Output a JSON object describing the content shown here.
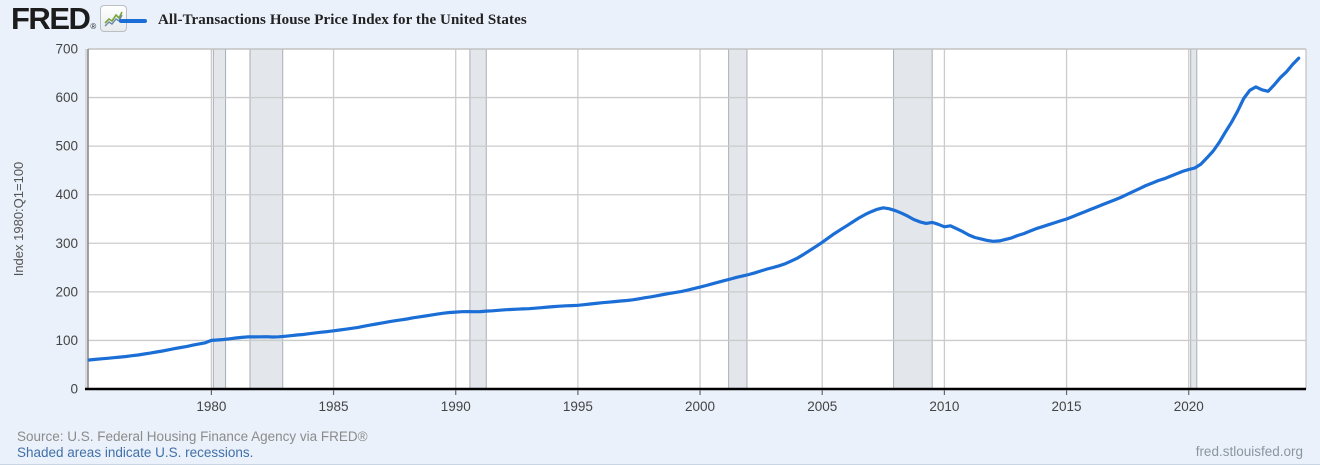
{
  "header": {
    "logo_text": "FRED",
    "logo_registered": "®",
    "legend": {
      "series_label": "All-Transactions House Price Index for the United States",
      "series_color": "#1b6ed6"
    }
  },
  "footer": {
    "source": "Source: U.S. Federal Housing Finance Agency via FRED®",
    "recession_note": "Shaded areas indicate U.S. recessions.",
    "site_link": "fred.stlouisfed.org"
  },
  "colors": {
    "page_background": "#eaf1fa",
    "plot_background": "#ffffff",
    "gridline": "#cbcbcb",
    "plot_border": "#c2c2c2",
    "y_axis_line": "#8a8a8a",
    "x_axis_line": "#000000",
    "recession_fill": "#e3e7eb",
    "recession_border": "#a8aeb4",
    "tick_label": "#444444",
    "axis_title": "#555555",
    "line": "#1b6ed6",
    "logo_sparkline_green": "#79a43c",
    "logo_sparkline_blue": "#6b87a4"
  },
  "chart_data": {
    "type": "line",
    "title": "All-Transactions House Price Index for the United States",
    "xlabel": "",
    "ylabel": "Index 1980:Q1=100",
    "legend_position": "top-left",
    "grid": true,
    "xlim": [
      1974.95,
      2024.8
    ],
    "ylim": [
      0,
      700
    ],
    "x_ticks": [
      1980,
      1985,
      1990,
      1995,
      2000,
      2005,
      2010,
      2015,
      2020
    ],
    "y_ticks": [
      0,
      100,
      200,
      300,
      400,
      500,
      600,
      700
    ],
    "recessions": [
      [
        1980.08,
        1980.58
      ],
      [
        1981.58,
        1982.92
      ],
      [
        1990.58,
        1991.25
      ],
      [
        2001.17,
        2001.92
      ],
      [
        2007.92,
        2009.5
      ],
      [
        2020.08,
        2020.33
      ]
    ],
    "series": [
      {
        "name": "All-Transactions House Price Index for the United States",
        "frequency": "quarterly",
        "x_start": 1975.0,
        "x_step": 0.25,
        "values": [
          59.8,
          61.0,
          62.1,
          63.2,
          64.4,
          65.7,
          67.0,
          68.5,
          70.1,
          72.0,
          74.0,
          76.1,
          78.3,
          80.7,
          83.1,
          85.5,
          87.8,
          90.3,
          92.8,
          95.1,
          100.0,
          100.8,
          102.0,
          103.4,
          104.9,
          106.3,
          107.3,
          107.2,
          107.4,
          107.6,
          107.0,
          107.5,
          108.4,
          109.7,
          111.1,
          112.3,
          113.9,
          115.5,
          116.9,
          118.2,
          119.8,
          121.4,
          123.1,
          124.9,
          126.9,
          129.2,
          131.6,
          133.9,
          136.1,
          138.4,
          140.5,
          142.2,
          144.2,
          146.5,
          148.5,
          150.2,
          152.1,
          154.3,
          156.1,
          157.4,
          158.4,
          159.2,
          159.4,
          159.2,
          159.4,
          160.3,
          161.1,
          162.0,
          163.1,
          163.7,
          164.3,
          165.0,
          165.4,
          166.3,
          167.4,
          168.7,
          169.7,
          170.5,
          171.3,
          171.8,
          172.4,
          173.6,
          175.0,
          176.3,
          177.7,
          178.8,
          179.9,
          181.1,
          182.2,
          183.7,
          185.7,
          187.9,
          189.9,
          192.1,
          194.5,
          196.8,
          198.8,
          201.0,
          203.7,
          206.7,
          209.7,
          213.1,
          216.6,
          219.8,
          223.1,
          226.4,
          229.9,
          232.8,
          235.7,
          239.2,
          243.2,
          247.0,
          250.3,
          253.9,
          258.2,
          263.9,
          270.0,
          277.5,
          285.5,
          293.5,
          302.0,
          311.0,
          320.0,
          328.0,
          336.0,
          344.0,
          352.0,
          359.0,
          365.0,
          370.0,
          373.0,
          371.0,
          367.0,
          362.0,
          356.0,
          349.0,
          344.0,
          341.0,
          343.0,
          339.0,
          334.0,
          336.0,
          330.0,
          324.0,
          317.0,
          312.0,
          309.0,
          306.0,
          304.0,
          305.0,
          308.0,
          311.0,
          316.0,
          320.0,
          325.0,
          330.0,
          334.0,
          338.0,
          342.0,
          346.0,
          350.0,
          355.0,
          360.0,
          365.0,
          370.0,
          375.0,
          380.0,
          385.0,
          390.0,
          395.0,
          401.0,
          407.0,
          413.0,
          419.0,
          424.0,
          429.0,
          433.0,
          438.0,
          443.0,
          448.0,
          452.0,
          455.0,
          463.0,
          476.0,
          490.0,
          508.0,
          529.0,
          549.0,
          572.0,
          598.0,
          615.0,
          622.0,
          616.0,
          613.0,
          626.0,
          641.0,
          653.0,
          668.0,
          681.0
        ]
      }
    ]
  }
}
